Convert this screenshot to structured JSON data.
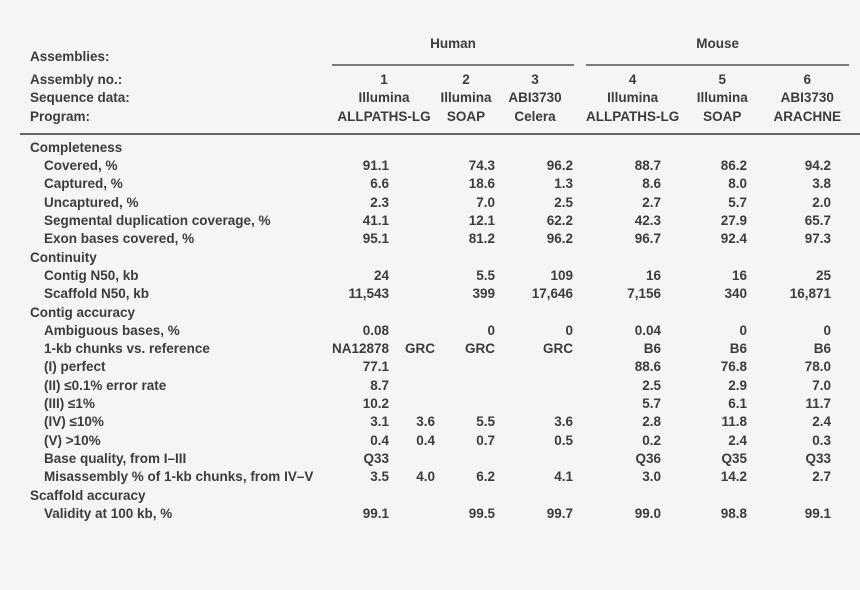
{
  "colors": {
    "background": "#f5f5f5",
    "text": "#3c3c3c",
    "rule_heavy": "#666666",
    "rule_group": "#7c7c7c"
  },
  "table": {
    "groups": [
      {
        "label": "Human"
      },
      {
        "label": "Mouse"
      }
    ],
    "header_rows": [
      {
        "label": "Assemblies:"
      },
      {
        "label": "Assembly no.:",
        "values": [
          "1",
          "2",
          "3",
          "4",
          "5",
          "6"
        ]
      },
      {
        "label": "Sequence data:",
        "values": [
          "Illumina",
          "Illumina",
          "ABI3730",
          "Illumina",
          "Illumina",
          "ABI3730"
        ]
      },
      {
        "label": "Program:",
        "values": [
          "ALLPATHS-LG",
          "SOAP",
          "Celera",
          "ALLPATHS-LG",
          "SOAP",
          "ARACHNE"
        ]
      }
    ],
    "rows": [
      {
        "type": "section",
        "label": "Completeness",
        "cells": [
          "",
          "",
          "",
          "",
          "",
          "",
          ""
        ]
      },
      {
        "type": "data",
        "label": "Covered, %",
        "cells": [
          "91.1",
          "",
          "74.3",
          "96.2",
          "88.7",
          "86.2",
          "94.2"
        ]
      },
      {
        "type": "data",
        "label": "Captured, %",
        "cells": [
          "6.6",
          "",
          "18.6",
          "1.3",
          "8.6",
          "8.0",
          "3.8"
        ]
      },
      {
        "type": "data",
        "label": "Uncaptured, %",
        "cells": [
          "2.3",
          "",
          "7.0",
          "2.5",
          "2.7",
          "5.7",
          "2.0"
        ]
      },
      {
        "type": "data",
        "label": "Segmental duplication coverage, %",
        "cells": [
          "41.1",
          "",
          "12.1",
          "62.2",
          "42.3",
          "27.9",
          "65.7"
        ]
      },
      {
        "type": "data",
        "label": "Exon bases covered, %",
        "cells": [
          "95.1",
          "",
          "81.2",
          "96.2",
          "96.7",
          "92.4",
          "97.3"
        ]
      },
      {
        "type": "section",
        "label": "Continuity",
        "cells": [
          "",
          "",
          "",
          "",
          "",
          "",
          ""
        ]
      },
      {
        "type": "data",
        "label": "Contig N50, kb",
        "cells": [
          "24",
          "",
          "5.5",
          "109",
          "16",
          "16",
          "25"
        ]
      },
      {
        "type": "data",
        "label": "Scaffold N50, kb",
        "cells": [
          "11,543",
          "",
          "399",
          "17,646",
          "7,156",
          "340",
          "16,871"
        ]
      },
      {
        "type": "section",
        "label": "Contig accuracy",
        "cells": [
          "",
          "",
          "",
          "",
          "",
          "",
          ""
        ]
      },
      {
        "type": "data",
        "label": "Ambiguous bases, %",
        "cells": [
          "0.08",
          "",
          "0",
          "0",
          "0.04",
          "0",
          "0"
        ]
      },
      {
        "type": "data",
        "label": "1-kb chunks vs. reference",
        "cells": [
          "NA12878",
          "GRC",
          "GRC",
          "GRC",
          "B6",
          "B6",
          "B6"
        ]
      },
      {
        "type": "data",
        "label": "(I) perfect",
        "cells": [
          "77.1",
          "",
          "",
          "",
          "88.6",
          "76.8",
          "78.0"
        ]
      },
      {
        "type": "data",
        "label": "(II) ≤0.1% error rate",
        "cells": [
          "8.7",
          "",
          "",
          "",
          "2.5",
          "2.9",
          "7.0"
        ]
      },
      {
        "type": "data",
        "label": "(III) ≤1%",
        "cells": [
          "10.2",
          "",
          "",
          "",
          "5.7",
          "6.1",
          "11.7"
        ]
      },
      {
        "type": "data",
        "label": "(IV) ≤10%",
        "cells": [
          "3.1",
          "3.6",
          "5.5",
          "3.6",
          "2.8",
          "11.8",
          "2.4"
        ]
      },
      {
        "type": "data",
        "label": "(V) >10%",
        "cells": [
          "0.4",
          "0.4",
          "0.7",
          "0.5",
          "0.2",
          "2.4",
          "0.3"
        ]
      },
      {
        "type": "data",
        "label": "Base quality, from I–III",
        "cells": [
          "Q33",
          "",
          "",
          "",
          "Q36",
          "Q35",
          "Q33"
        ]
      },
      {
        "type": "data",
        "label": "Misassembly % of 1-kb chunks, from IV–V",
        "cells": [
          "3.5",
          "4.0",
          "6.2",
          "4.1",
          "3.0",
          "14.2",
          "2.7"
        ]
      },
      {
        "type": "section",
        "label": "Scaffold accuracy",
        "cells": [
          "",
          "",
          "",
          "",
          "",
          "",
          ""
        ]
      },
      {
        "type": "data",
        "label": "Validity at 100 kb, %",
        "cells": [
          "99.1",
          "",
          "99.5",
          "99.7",
          "99.0",
          "98.8",
          "99.1"
        ]
      }
    ]
  }
}
